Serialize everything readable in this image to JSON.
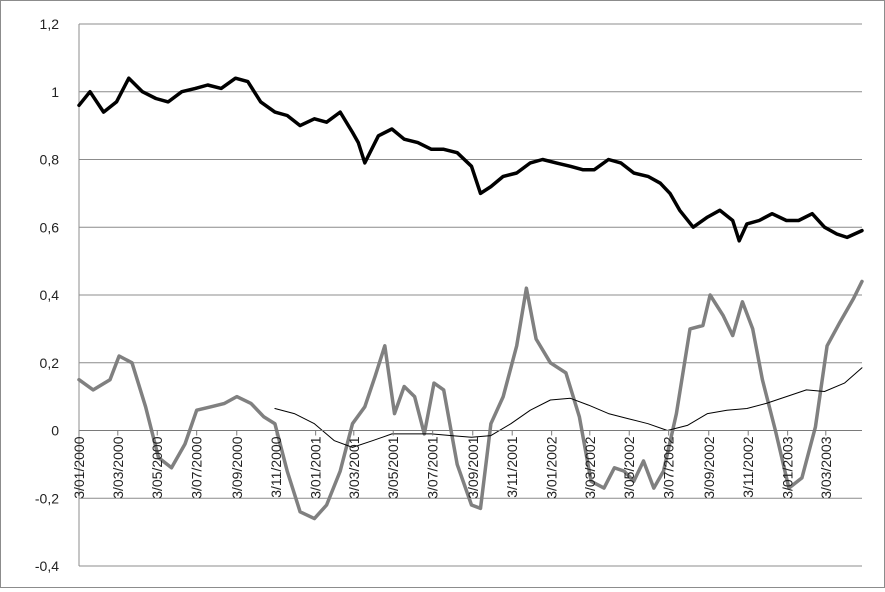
{
  "chart_data": {
    "type": "line",
    "title": "",
    "xlabel": "",
    "ylabel": "",
    "ylim": [
      -0.4,
      1.2
    ],
    "y_ticks": [
      1.2,
      1.0,
      0.8,
      0.6,
      0.4,
      0.2,
      0.0,
      -0.2,
      -0.4
    ],
    "y_tick_labels": [
      "1,2",
      "1",
      "0,8",
      "0,6",
      "0,4",
      "0,2",
      "0",
      "-0,2",
      "-0,4"
    ],
    "x_range": [
      "2000-01-03",
      "2003-04-28"
    ],
    "x_ticks": [
      "2000-01-03",
      "2000-03-03",
      "2000-05-03",
      "2000-07-03",
      "2000-09-03",
      "2000-11-03",
      "2001-01-03",
      "2001-03-03",
      "2001-05-03",
      "2001-07-03",
      "2001-09-03",
      "2001-11-03",
      "2002-01-03",
      "2002-03-03",
      "2002-05-03",
      "2002-07-03",
      "2002-09-03",
      "2002-11-03",
      "2003-01-03",
      "2003-03-03"
    ],
    "x_tick_labels": [
      "3/01/2000",
      "3/03/2000",
      "3/05/2000",
      "3/07/2000",
      "3/09/2000",
      "3/11/2000",
      "3/01/2001",
      "3/03/2001",
      "3/05/2001",
      "3/07/2001",
      "3/09/2001",
      "3/11/2001",
      "3/01/2002",
      "3/03/2002",
      "3/05/2002",
      "3/07/2002",
      "3/09/2002",
      "3/11/2002",
      "3/01/2003",
      "3/03/2003"
    ],
    "grid": "horizontal",
    "legend": "none",
    "series": [
      {
        "color": "#000000",
        "style": "thick",
        "x": [
          "2000-01-03",
          "2000-01-20",
          "2000-02-10",
          "2000-03-01",
          "2000-03-20",
          "2000-04-10",
          "2000-05-01",
          "2000-05-20",
          "2000-06-10",
          "2000-07-01",
          "2000-07-20",
          "2000-08-10",
          "2000-09-01",
          "2000-09-20",
          "2000-10-10",
          "2000-11-01",
          "2000-11-20",
          "2000-12-10",
          "2001-01-01",
          "2001-01-20",
          "2001-02-10",
          "2001-03-01",
          "2001-03-10",
          "2001-03-20",
          "2001-04-10",
          "2001-05-01",
          "2001-05-20",
          "2001-06-10",
          "2001-07-01",
          "2001-07-20",
          "2001-08-10",
          "2001-09-01",
          "2001-09-15",
          "2001-10-01",
          "2001-10-20",
          "2001-11-10",
          "2001-12-01",
          "2001-12-20",
          "2002-01-10",
          "2002-02-01",
          "2002-02-20",
          "2002-03-10",
          "2002-04-01",
          "2002-04-20",
          "2002-05-10",
          "2002-06-01",
          "2002-06-20",
          "2002-07-05",
          "2002-07-20",
          "2002-08-10",
          "2002-09-01",
          "2002-09-20",
          "2002-10-10",
          "2002-10-20",
          "2002-11-01",
          "2002-11-20",
          "2002-12-10",
          "2003-01-01",
          "2003-01-20",
          "2003-02-10",
          "2003-03-01",
          "2003-03-20",
          "2003-04-05",
          "2003-04-28"
        ],
        "y": [
          0.96,
          1.0,
          0.94,
          0.97,
          1.04,
          1.0,
          0.98,
          0.97,
          1.0,
          1.01,
          1.02,
          1.01,
          1.04,
          1.03,
          0.97,
          0.94,
          0.93,
          0.9,
          0.92,
          0.91,
          0.94,
          0.88,
          0.85,
          0.79,
          0.87,
          0.89,
          0.86,
          0.85,
          0.83,
          0.83,
          0.82,
          0.78,
          0.7,
          0.72,
          0.75,
          0.76,
          0.79,
          0.8,
          0.79,
          0.78,
          0.77,
          0.77,
          0.8,
          0.79,
          0.76,
          0.75,
          0.73,
          0.7,
          0.65,
          0.6,
          0.63,
          0.65,
          0.62,
          0.56,
          0.61,
          0.62,
          0.64,
          0.62,
          0.62,
          0.64,
          0.6,
          0.58,
          0.57,
          0.59
        ]
      },
      {
        "color": "#808080",
        "style": "thick",
        "x": [
          "2000-01-03",
          "2000-01-25",
          "2000-02-20",
          "2000-03-05",
          "2000-03-25",
          "2000-04-15",
          "2000-05-05",
          "2000-05-25",
          "2000-06-15",
          "2000-07-03",
          "2000-07-25",
          "2000-08-15",
          "2000-09-03",
          "2000-09-25",
          "2000-10-15",
          "2000-11-01",
          "2000-11-20",
          "2000-12-10",
          "2001-01-01",
          "2001-01-20",
          "2001-02-10",
          "2001-03-01",
          "2001-03-20",
          "2001-04-05",
          "2001-04-20",
          "2001-05-05",
          "2001-05-20",
          "2001-06-05",
          "2001-06-20",
          "2001-07-05",
          "2001-07-20",
          "2001-08-10",
          "2001-09-01",
          "2001-09-15",
          "2001-10-01",
          "2001-10-20",
          "2001-11-10",
          "2001-11-25",
          "2001-12-10",
          "2002-01-01",
          "2002-01-25",
          "2002-02-15",
          "2002-03-05",
          "2002-03-25",
          "2002-04-10",
          "2002-04-25",
          "2002-05-10",
          "2002-05-25",
          "2002-06-10",
          "2002-06-25",
          "2002-07-15",
          "2002-08-05",
          "2002-08-25",
          "2002-09-05",
          "2002-09-25",
          "2002-10-10",
          "2002-10-25",
          "2002-11-10",
          "2002-11-25",
          "2002-12-15",
          "2003-01-05",
          "2003-01-25",
          "2003-02-15",
          "2003-03-05",
          "2003-03-25",
          "2003-04-15",
          "2003-04-28"
        ],
        "y": [
          0.15,
          0.12,
          0.15,
          0.22,
          0.2,
          0.07,
          -0.08,
          -0.11,
          -0.04,
          0.06,
          0.07,
          0.08,
          0.1,
          0.08,
          0.04,
          0.02,
          -0.12,
          -0.24,
          -0.26,
          -0.22,
          -0.12,
          0.02,
          0.07,
          0.16,
          0.25,
          0.05,
          0.13,
          0.1,
          -0.01,
          0.14,
          0.12,
          -0.1,
          -0.22,
          -0.23,
          0.02,
          0.1,
          0.25,
          0.42,
          0.27,
          0.2,
          0.17,
          0.04,
          -0.15,
          -0.17,
          -0.11,
          -0.12,
          -0.15,
          -0.09,
          -0.17,
          -0.12,
          0.05,
          0.3,
          0.31,
          0.4,
          0.34,
          0.28,
          0.38,
          0.3,
          0.15,
          0.0,
          -0.17,
          -0.14,
          0.01,
          0.25,
          0.32,
          0.39,
          0.44
        ]
      },
      {
        "color": "#000000",
        "style": "thin",
        "x": [
          "2000-11-01",
          "2000-12-01",
          "2001-01-01",
          "2001-02-01",
          "2001-03-01",
          "2001-04-01",
          "2001-05-01",
          "2001-06-01",
          "2001-07-01",
          "2001-08-01",
          "2001-09-01",
          "2001-10-01",
          "2001-11-01",
          "2001-12-01",
          "2002-01-01",
          "2002-02-01",
          "2002-03-01",
          "2002-04-01",
          "2002-05-01",
          "2002-06-01",
          "2002-07-01",
          "2002-08-01",
          "2002-09-01",
          "2002-10-01",
          "2002-11-01",
          "2002-12-01",
          "2003-01-01",
          "2003-02-01",
          "2003-03-01",
          "2003-04-01",
          "2003-04-28"
        ],
        "y": [
          0.065,
          0.05,
          0.02,
          -0.03,
          -0.05,
          -0.03,
          -0.01,
          -0.01,
          -0.01,
          -0.015,
          -0.02,
          -0.015,
          0.02,
          0.06,
          0.09,
          0.095,
          0.075,
          0.05,
          0.035,
          0.02,
          0.0,
          0.015,
          0.05,
          0.06,
          0.065,
          0.08,
          0.1,
          0.12,
          0.115,
          0.14,
          0.185
        ]
      }
    ]
  }
}
